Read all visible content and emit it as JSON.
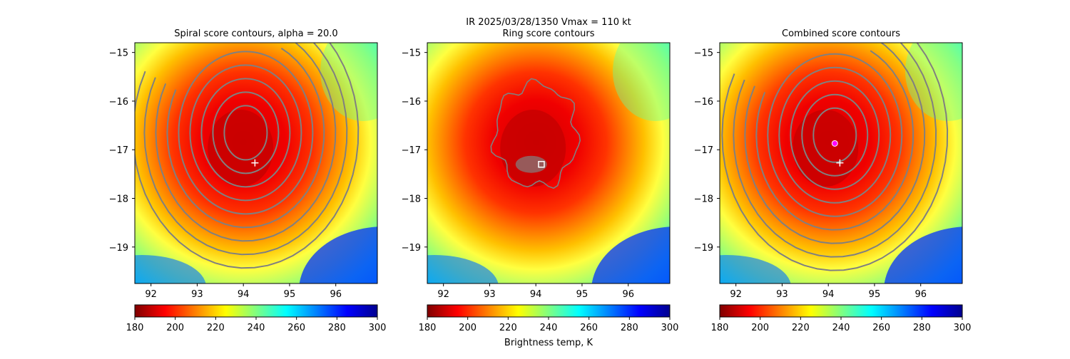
{
  "suptitle_line1": "IR  2025/03/28/1350    Vmax = 110 kt",
  "colormap": {
    "name": "jet_r",
    "stops": [
      "#7f0000",
      "#ff0000",
      "#ff8000",
      "#ffff00",
      "#80ff80",
      "#00ffff",
      "#0080ff",
      "#0000ff",
      "#00008f"
    ]
  },
  "chart_data": [
    {
      "type": "heatmap",
      "title": "Spiral score contours, alpha = 20.0",
      "xlabel": "",
      "ylabel": "",
      "xlim": [
        91.65,
        96.9
      ],
      "ylim": [
        -19.75,
        -14.8
      ],
      "xticks": [
        92,
        93,
        94,
        95,
        96
      ],
      "xtick_labels": [
        "92",
        "93",
        "94",
        "95",
        "96"
      ],
      "yticks": [
        -15,
        -16,
        -17,
        -18,
        -19
      ],
      "ytick_labels": [
        "−15",
        "−16",
        "−17",
        "−18",
        "−19"
      ],
      "eye": {
        "lon": 94.0,
        "lat": -16.85
      },
      "markers": [
        {
          "kind": "plus",
          "lon": 94.25,
          "lat": -17.27,
          "color": "#ffffff"
        }
      ],
      "contours": "spiral",
      "colorbar": {
        "min": 180,
        "max": 300,
        "ticks": [
          180,
          200,
          220,
          240,
          260,
          280,
          300
        ],
        "tick_labels": [
          "180",
          "200",
          "220",
          "240",
          "260",
          "280",
          "300"
        ],
        "label": ""
      }
    },
    {
      "type": "heatmap",
      "title": "Ring score contours",
      "xlabel": "",
      "ylabel": "",
      "xlim": [
        91.65,
        96.9
      ],
      "ylim": [
        -19.75,
        -14.8
      ],
      "xticks": [
        92,
        93,
        94,
        95,
        96
      ],
      "xtick_labels": [
        "92",
        "93",
        "94",
        "95",
        "96"
      ],
      "yticks": [
        -15,
        -16,
        -17,
        -18,
        -19
      ],
      "ytick_labels": [
        "−15",
        "−16",
        "−17",
        "−18",
        "−19"
      ],
      "eye": {
        "lon": 94.0,
        "lat": -16.85
      },
      "markers": [
        {
          "kind": "square",
          "lon": 94.12,
          "lat": -17.3,
          "color": "#ffffff"
        }
      ],
      "contours": "ring",
      "colorbar": {
        "min": 180,
        "max": 300,
        "ticks": [
          180,
          200,
          220,
          240,
          260,
          280,
          300
        ],
        "tick_labels": [
          "180",
          "200",
          "220",
          "240",
          "260",
          "280",
          "300"
        ],
        "label": "Brightness temp, K"
      }
    },
    {
      "type": "heatmap",
      "title": "Combined score contours",
      "xlabel": "",
      "ylabel": "",
      "xlim": [
        91.65,
        96.9
      ],
      "ylim": [
        -19.75,
        -14.8
      ],
      "xticks": [
        92,
        93,
        94,
        95,
        96
      ],
      "xtick_labels": [
        "92",
        "93",
        "94",
        "95",
        "96"
      ],
      "yticks": [
        -15,
        -16,
        -17,
        -18,
        -19
      ],
      "ytick_labels": [
        "−15",
        "−16",
        "−17",
        "−18",
        "−19"
      ],
      "eye": {
        "lon": 94.0,
        "lat": -16.85
      },
      "markers": [
        {
          "kind": "circle",
          "lon": 94.14,
          "lat": -16.87,
          "color": "#ff00ff"
        },
        {
          "kind": "plus",
          "lon": 94.25,
          "lat": -17.27,
          "color": "#ffffff"
        }
      ],
      "contours": "combined",
      "colorbar": {
        "min": 180,
        "max": 300,
        "ticks": [
          180,
          200,
          220,
          240,
          260,
          280,
          300
        ],
        "tick_labels": [
          "180",
          "200",
          "220",
          "240",
          "260",
          "280",
          "300"
        ],
        "label": ""
      }
    }
  ]
}
